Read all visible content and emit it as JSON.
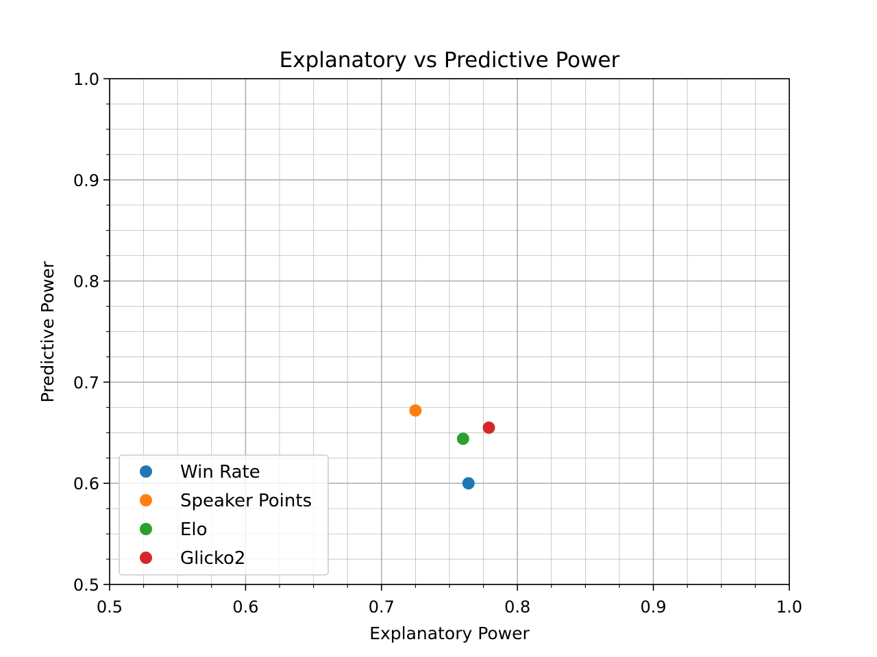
{
  "chart_data": {
    "type": "scatter",
    "title": "Explanatory vs Predictive Power",
    "xlabel": "Explanatory Power",
    "ylabel": "Predictive Power",
    "xlim": [
      0.5,
      1.0
    ],
    "ylim": [
      0.5,
      1.0
    ],
    "x_ticks": [
      "0.5",
      "0.6",
      "0.7",
      "0.8",
      "0.9",
      "1.0"
    ],
    "y_ticks": [
      "0.5",
      "0.6",
      "0.7",
      "0.8",
      "0.9",
      "1.0"
    ],
    "grid": "major and minor",
    "legend_position": "lower-left",
    "series": [
      {
        "name": "Win Rate",
        "color": "#1f77b4",
        "points": [
          {
            "x": 0.764,
            "y": 0.6
          }
        ]
      },
      {
        "name": "Speaker Points",
        "color": "#ff7f0e",
        "points": [
          {
            "x": 0.725,
            "y": 0.672
          }
        ]
      },
      {
        "name": "Elo",
        "color": "#2ca02c",
        "points": [
          {
            "x": 0.76,
            "y": 0.644
          }
        ]
      },
      {
        "name": "Glicko2",
        "color": "#d62728",
        "points": [
          {
            "x": 0.779,
            "y": 0.655
          }
        ]
      }
    ]
  }
}
